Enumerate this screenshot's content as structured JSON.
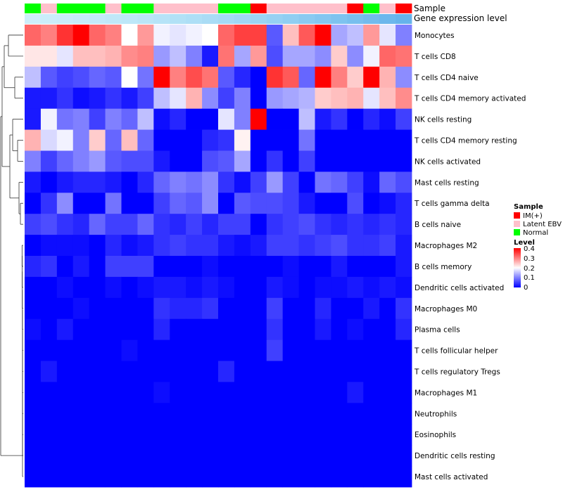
{
  "chart_data": {
    "type": "heatmap",
    "columns_count": 24,
    "row_labels": [
      "Monocytes",
      "T cells CD8",
      "T cells CD4 naive",
      "T cells CD4 memory activated",
      "NK cells resting",
      "T cells CD4 memory resting",
      "NK cells activated",
      "Mast cells resting",
      "T cells gamma delta",
      "B cells naive",
      "Macrophages M2",
      "B cells memory",
      "Dendritic cells activated",
      "Macrophages M0",
      "Plasma cells",
      "T cells follicular helper",
      "T cells regulatory  Tregs",
      "Macrophages M1",
      "Neutrophils",
      "Eosinophils",
      "Dendritic cells resting",
      "Mast cells activated"
    ],
    "values": [
      [
        0.32,
        0.3,
        0.36,
        0.4,
        0.32,
        0.3,
        0.2,
        0.28,
        0.19,
        0.18,
        0.19,
        0.2,
        0.32,
        0.35,
        0.35,
        0.07,
        0.25,
        0.33,
        0.4,
        0.13,
        0.15,
        0.28,
        0.18,
        0.1
      ],
      [
        0.22,
        0.22,
        0.18,
        0.25,
        0.25,
        0.26,
        0.29,
        0.3,
        0.12,
        0.15,
        0.1,
        0.02,
        0.31,
        0.13,
        0.28,
        0.06,
        0.13,
        0.13,
        0.11,
        0.24,
        0.11,
        0.19,
        0.32,
        0.31
      ],
      [
        0.15,
        0.07,
        0.05,
        0.06,
        0.08,
        0.07,
        0.2,
        0.09,
        0.4,
        0.3,
        0.34,
        0.31,
        0.07,
        0.03,
        0.0,
        0.36,
        0.33,
        0.08,
        0.4,
        0.3,
        0.24,
        0.4,
        0.26,
        0.11
      ],
      [
        0.02,
        0.02,
        0.04,
        0.01,
        0.02,
        0.04,
        0.02,
        0.05,
        0.15,
        0.18,
        0.26,
        0.11,
        0.05,
        0.1,
        0.0,
        0.12,
        0.13,
        0.14,
        0.24,
        0.25,
        0.26,
        0.18,
        0.25,
        0.29
      ],
      [
        0.02,
        0.19,
        0.09,
        0.1,
        0.05,
        0.1,
        0.08,
        0.15,
        0.01,
        0.03,
        0.0,
        0.0,
        0.18,
        0.1,
        0.4,
        0.0,
        0.0,
        0.15,
        0.02,
        0.04,
        0.0,
        0.03,
        0.01,
        0.05
      ],
      [
        0.26,
        0.17,
        0.19,
        0.1,
        0.24,
        0.08,
        0.25,
        0.08,
        0.0,
        0.0,
        0.0,
        0.03,
        0.04,
        0.21,
        0.0,
        0.0,
        0.0,
        0.09,
        0.0,
        0.0,
        0.0,
        0.0,
        0.0,
        0.0
      ],
      [
        0.1,
        0.05,
        0.08,
        0.1,
        0.12,
        0.07,
        0.06,
        0.06,
        0.02,
        0.0,
        0.0,
        0.06,
        0.07,
        0.13,
        0.0,
        0.04,
        0.0,
        0.05,
        0.0,
        0.0,
        0.0,
        0.0,
        0.0,
        0.0
      ],
      [
        0.02,
        0.0,
        0.02,
        0.03,
        0.03,
        0.02,
        0.0,
        0.03,
        0.08,
        0.1,
        0.09,
        0.11,
        0.04,
        0.01,
        0.05,
        0.12,
        0.05,
        0.0,
        0.09,
        0.08,
        0.05,
        0.01,
        0.08,
        0.06
      ],
      [
        0.0,
        0.04,
        0.11,
        0.0,
        0.0,
        0.09,
        0.0,
        0.0,
        0.05,
        0.08,
        0.07,
        0.11,
        0.0,
        0.07,
        0.06,
        0.06,
        0.05,
        0.02,
        0.0,
        0.0,
        0.06,
        0.0,
        0.01,
        0.03
      ],
      [
        0.05,
        0.06,
        0.04,
        0.03,
        0.08,
        0.05,
        0.05,
        0.08,
        0.04,
        0.03,
        0.05,
        0.03,
        0.05,
        0.05,
        0.0,
        0.04,
        0.05,
        0.06,
        0.04,
        0.03,
        0.04,
        0.03,
        0.04,
        0.03
      ],
      [
        0.0,
        0.01,
        0.01,
        0.01,
        0.0,
        0.03,
        0.01,
        0.02,
        0.04,
        0.05,
        0.04,
        0.04,
        0.02,
        0.01,
        0.02,
        0.05,
        0.05,
        0.04,
        0.05,
        0.06,
        0.04,
        0.04,
        0.05,
        0.02
      ],
      [
        0.03,
        0.04,
        0.0,
        0.02,
        0.0,
        0.05,
        0.05,
        0.05,
        0.0,
        0.0,
        0.0,
        0.01,
        0.0,
        0.0,
        0.0,
        0.0,
        0.01,
        0.0,
        0.0,
        0.02,
        0.0,
        0.0,
        0.0,
        0.02
      ],
      [
        0.0,
        0.0,
        0.01,
        0.0,
        0.0,
        0.01,
        0.0,
        0.01,
        0.02,
        0.02,
        0.01,
        0.02,
        0.01,
        0.0,
        0.0,
        0.02,
        0.01,
        0.0,
        0.01,
        0.01,
        0.02,
        0.01,
        0.02,
        0.01
      ],
      [
        0.0,
        0.0,
        0.0,
        0.01,
        0.0,
        0.0,
        0.0,
        0.0,
        0.04,
        0.03,
        0.03,
        0.04,
        0.0,
        0.0,
        0.0,
        0.05,
        0.0,
        0.0,
        0.03,
        0.0,
        0.0,
        0.02,
        0.0,
        0.04
      ],
      [
        0.01,
        0.0,
        0.02,
        0.0,
        0.0,
        0.0,
        0.0,
        0.0,
        0.03,
        0.0,
        0.0,
        0.0,
        0.0,
        0.0,
        0.0,
        0.04,
        0.0,
        0.0,
        0.02,
        0.0,
        0.01,
        0.0,
        0.0,
        0.03
      ],
      [
        0.0,
        0.0,
        0.0,
        0.0,
        0.0,
        0.0,
        0.01,
        0.0,
        0.0,
        0.0,
        0.0,
        0.0,
        0.0,
        0.0,
        0.0,
        0.05,
        0.0,
        0.0,
        0.0,
        0.0,
        0.0,
        0.0,
        0.0,
        0.0
      ],
      [
        0.0,
        0.02,
        0.0,
        0.0,
        0.0,
        0.0,
        0.0,
        0.0,
        0.0,
        0.0,
        0.0,
        0.0,
        0.03,
        0.0,
        0.0,
        0.0,
        0.0,
        0.0,
        0.0,
        0.0,
        0.0,
        0.0,
        0.0,
        0.0
      ],
      [
        0.0,
        0.0,
        0.0,
        0.0,
        0.0,
        0.0,
        0.0,
        0.0,
        0.01,
        0.0,
        0.0,
        0.0,
        0.0,
        0.0,
        0.0,
        0.0,
        0.0,
        0.0,
        0.0,
        0.0,
        0.02,
        0.0,
        0.0,
        0.0
      ],
      [
        0.0,
        0.0,
        0.0,
        0.0,
        0.0,
        0.0,
        0.0,
        0.0,
        0.0,
        0.0,
        0.0,
        0.0,
        0.0,
        0.0,
        0.0,
        0.0,
        0.0,
        0.0,
        0.0,
        0.0,
        0.0,
        0.0,
        0.0,
        0.0
      ],
      [
        0.0,
        0.0,
        0.0,
        0.0,
        0.0,
        0.0,
        0.0,
        0.0,
        0.0,
        0.0,
        0.0,
        0.0,
        0.0,
        0.0,
        0.0,
        0.0,
        0.0,
        0.0,
        0.0,
        0.0,
        0.0,
        0.0,
        0.0,
        0.0
      ],
      [
        0.0,
        0.0,
        0.0,
        0.0,
        0.0,
        0.0,
        0.0,
        0.0,
        0.0,
        0.0,
        0.0,
        0.0,
        0.0,
        0.0,
        0.0,
        0.0,
        0.0,
        0.0,
        0.0,
        0.0,
        0.0,
        0.0,
        0.0,
        0.0
      ],
      [
        0.0,
        0.0,
        0.0,
        0.0,
        0.0,
        0.0,
        0.0,
        0.0,
        0.0,
        0.0,
        0.0,
        0.0,
        0.0,
        0.0,
        0.0,
        0.0,
        0.0,
        0.0,
        0.0,
        0.0,
        0.0,
        0.0,
        0.0,
        0.0
      ]
    ],
    "color_scale": {
      "min": 0,
      "max": 0.4,
      "colors": [
        "#0000ff",
        "#ffffff",
        "#ff0000"
      ],
      "stops": [
        0,
        0.5,
        1
      ]
    },
    "annotations": {
      "sample": {
        "label": "Sample",
        "values": [
          "Normal",
          "Latent EBV",
          "Normal",
          "Normal",
          "Normal",
          "Latent EBV",
          "Normal",
          "Normal",
          "Latent EBV",
          "Latent EBV",
          "Latent EBV",
          "Latent EBV",
          "Normal",
          "Normal",
          "IM(+)",
          "Latent EBV",
          "Latent EBV",
          "Latent EBV",
          "Latent EBV",
          "Latent EBV",
          "IM(+)",
          "Normal",
          "Latent EBV",
          "IM(+)"
        ]
      },
      "gene_expression_level": {
        "label": "Gene expression level",
        "colors": [
          "#cdeefb",
          "#cbedfa",
          "#c9ecfa",
          "#c6ebf9",
          "#c3eaf9",
          "#c0e8f8",
          "#bde7f8",
          "#bae5f7",
          "#b6e3f7",
          "#b2e1f6",
          "#aedff6",
          "#aadcf5",
          "#a5daf5",
          "#a0d7f4",
          "#9bd4f3",
          "#96d1f3",
          "#90cef2",
          "#8acaf1",
          "#84c6f0",
          "#7ec3ef",
          "#78bfee",
          "#72bbed",
          "#6cb7ec",
          "#66b3eb"
        ]
      }
    },
    "legends": [
      {
        "title": "Sample",
        "items": [
          {
            "label": "IM(+)",
            "color": "#ff0000"
          },
          {
            "label": "Latent EBV",
            "color": "#ffc0cb"
          },
          {
            "label": "Normal",
            "color": "#00ff00"
          }
        ]
      },
      {
        "title": "Level",
        "ticks": [
          "0.4",
          "0.3",
          "0.2",
          "0.1",
          "0"
        ]
      }
    ]
  }
}
